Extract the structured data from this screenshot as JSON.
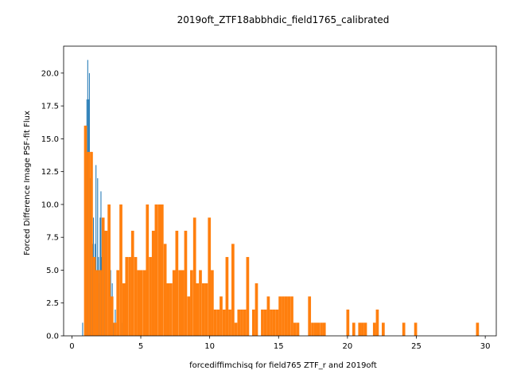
{
  "chart_data": {
    "type": "bar",
    "title": "2019oft_ZTF18abbhdic_field1765_calibrated",
    "xlabel": "forcediffimchisq for field765 ZTF_r and 2019oft",
    "ylabel": "Forced Difference Image PSF-fit Flux",
    "xlim": [
      -0.6,
      30.8
    ],
    "ylim": [
      0,
      22.05
    ],
    "xticks": [
      0,
      5,
      10,
      15,
      20,
      25,
      30
    ],
    "xtick_labels": [
      "0",
      "5",
      "10",
      "15",
      "20",
      "25",
      "30"
    ],
    "yticks": [
      0,
      2.5,
      5,
      7.5,
      10,
      12.5,
      15,
      17.5,
      20
    ],
    "ytick_labels": [
      "0.0",
      "2.5",
      "5.0",
      "7.5",
      "10.0",
      "12.5",
      "15.0",
      "17.5",
      "20.0"
    ],
    "grid": false,
    "series": [
      {
        "color": "#1f77b4",
        "bar_width": 0.06,
        "bars": [
          [
            0.75,
            1
          ],
          [
            1.0,
            16
          ],
          [
            1.06,
            18
          ],
          [
            1.12,
            21
          ],
          [
            1.18,
            18
          ],
          [
            1.24,
            20
          ],
          [
            1.3,
            12
          ],
          [
            1.36,
            14
          ],
          [
            1.42,
            11
          ],
          [
            1.48,
            7
          ],
          [
            1.54,
            9
          ],
          [
            1.6,
            5
          ],
          [
            1.66,
            7
          ],
          [
            1.72,
            13
          ],
          [
            1.78,
            5
          ],
          [
            1.84,
            12
          ],
          [
            1.9,
            6
          ],
          [
            1.96,
            4
          ],
          [
            2.02,
            9
          ],
          [
            2.08,
            11
          ],
          [
            2.14,
            6
          ],
          [
            2.26,
            5
          ],
          [
            2.38,
            8
          ],
          [
            2.5,
            4
          ],
          [
            2.66,
            2
          ],
          [
            2.78,
            5
          ],
          [
            2.9,
            4
          ],
          [
            3.0,
            1
          ],
          [
            3.12,
            2
          ],
          [
            3.24,
            5
          ],
          [
            3.36,
            3
          ],
          [
            3.48,
            2
          ],
          [
            3.6,
            1
          ]
        ]
      },
      {
        "color": "#ff7f0e",
        "bar_width": 0.2137,
        "bars": [
          [
            0.88,
            16
          ],
          [
            1.09,
            14
          ],
          [
            1.31,
            14
          ],
          [
            1.52,
            6
          ],
          [
            1.73,
            5
          ],
          [
            1.95,
            5
          ],
          [
            2.16,
            9
          ],
          [
            2.38,
            8
          ],
          [
            2.59,
            10
          ],
          [
            2.8,
            3
          ],
          [
            3.02,
            1
          ],
          [
            3.23,
            5
          ],
          [
            3.45,
            10
          ],
          [
            3.66,
            4
          ],
          [
            3.87,
            6
          ],
          [
            4.09,
            6
          ],
          [
            4.3,
            8
          ],
          [
            4.52,
            6
          ],
          [
            4.73,
            5
          ],
          [
            4.94,
            5
          ],
          [
            5.16,
            5
          ],
          [
            5.37,
            10
          ],
          [
            5.59,
            6
          ],
          [
            5.8,
            8
          ],
          [
            6.01,
            10
          ],
          [
            6.23,
            10
          ],
          [
            6.44,
            10
          ],
          [
            6.66,
            7
          ],
          [
            6.87,
            4
          ],
          [
            7.08,
            4
          ],
          [
            7.3,
            5
          ],
          [
            7.51,
            8
          ],
          [
            7.73,
            5
          ],
          [
            7.94,
            5
          ],
          [
            8.15,
            8
          ],
          [
            8.37,
            3
          ],
          [
            8.58,
            5
          ],
          [
            8.8,
            9
          ],
          [
            9.01,
            4
          ],
          [
            9.22,
            5
          ],
          [
            9.44,
            4
          ],
          [
            9.65,
            4
          ],
          [
            9.87,
            9
          ],
          [
            10.08,
            5
          ],
          [
            10.29,
            2
          ],
          [
            10.51,
            2
          ],
          [
            10.72,
            3
          ],
          [
            10.94,
            2
          ],
          [
            11.15,
            6
          ],
          [
            11.36,
            2
          ],
          [
            11.58,
            7
          ],
          [
            11.79,
            1
          ],
          [
            12.01,
            2
          ],
          [
            12.22,
            2
          ],
          [
            12.43,
            2
          ],
          [
            12.65,
            6
          ],
          [
            12.86,
            0
          ],
          [
            13.08,
            2
          ],
          [
            13.29,
            4
          ],
          [
            13.5,
            0
          ],
          [
            13.72,
            2
          ],
          [
            13.93,
            2
          ],
          [
            14.15,
            3
          ],
          [
            14.36,
            2
          ],
          [
            14.57,
            2
          ],
          [
            14.79,
            2
          ],
          [
            15.0,
            3
          ],
          [
            15.22,
            3
          ],
          [
            15.43,
            3
          ],
          [
            15.64,
            3
          ],
          [
            15.86,
            3
          ],
          [
            16.07,
            1
          ],
          [
            16.29,
            1
          ],
          [
            16.5,
            0
          ],
          [
            16.71,
            0
          ],
          [
            16.93,
            0
          ],
          [
            17.14,
            3
          ],
          [
            17.36,
            1
          ],
          [
            17.57,
            1
          ],
          [
            17.78,
            1
          ],
          [
            18.0,
            1
          ],
          [
            18.21,
            1
          ],
          [
            19.92,
            2
          ],
          [
            20.35,
            1
          ],
          [
            20.56,
            0
          ],
          [
            20.78,
            1
          ],
          [
            20.99,
            1
          ],
          [
            21.2,
            1
          ],
          [
            21.63,
            0
          ],
          [
            21.85,
            1
          ],
          [
            22.06,
            2
          ],
          [
            22.49,
            1
          ],
          [
            23.98,
            1
          ],
          [
            24.84,
            1
          ],
          [
            29.33,
            1
          ]
        ]
      }
    ]
  }
}
